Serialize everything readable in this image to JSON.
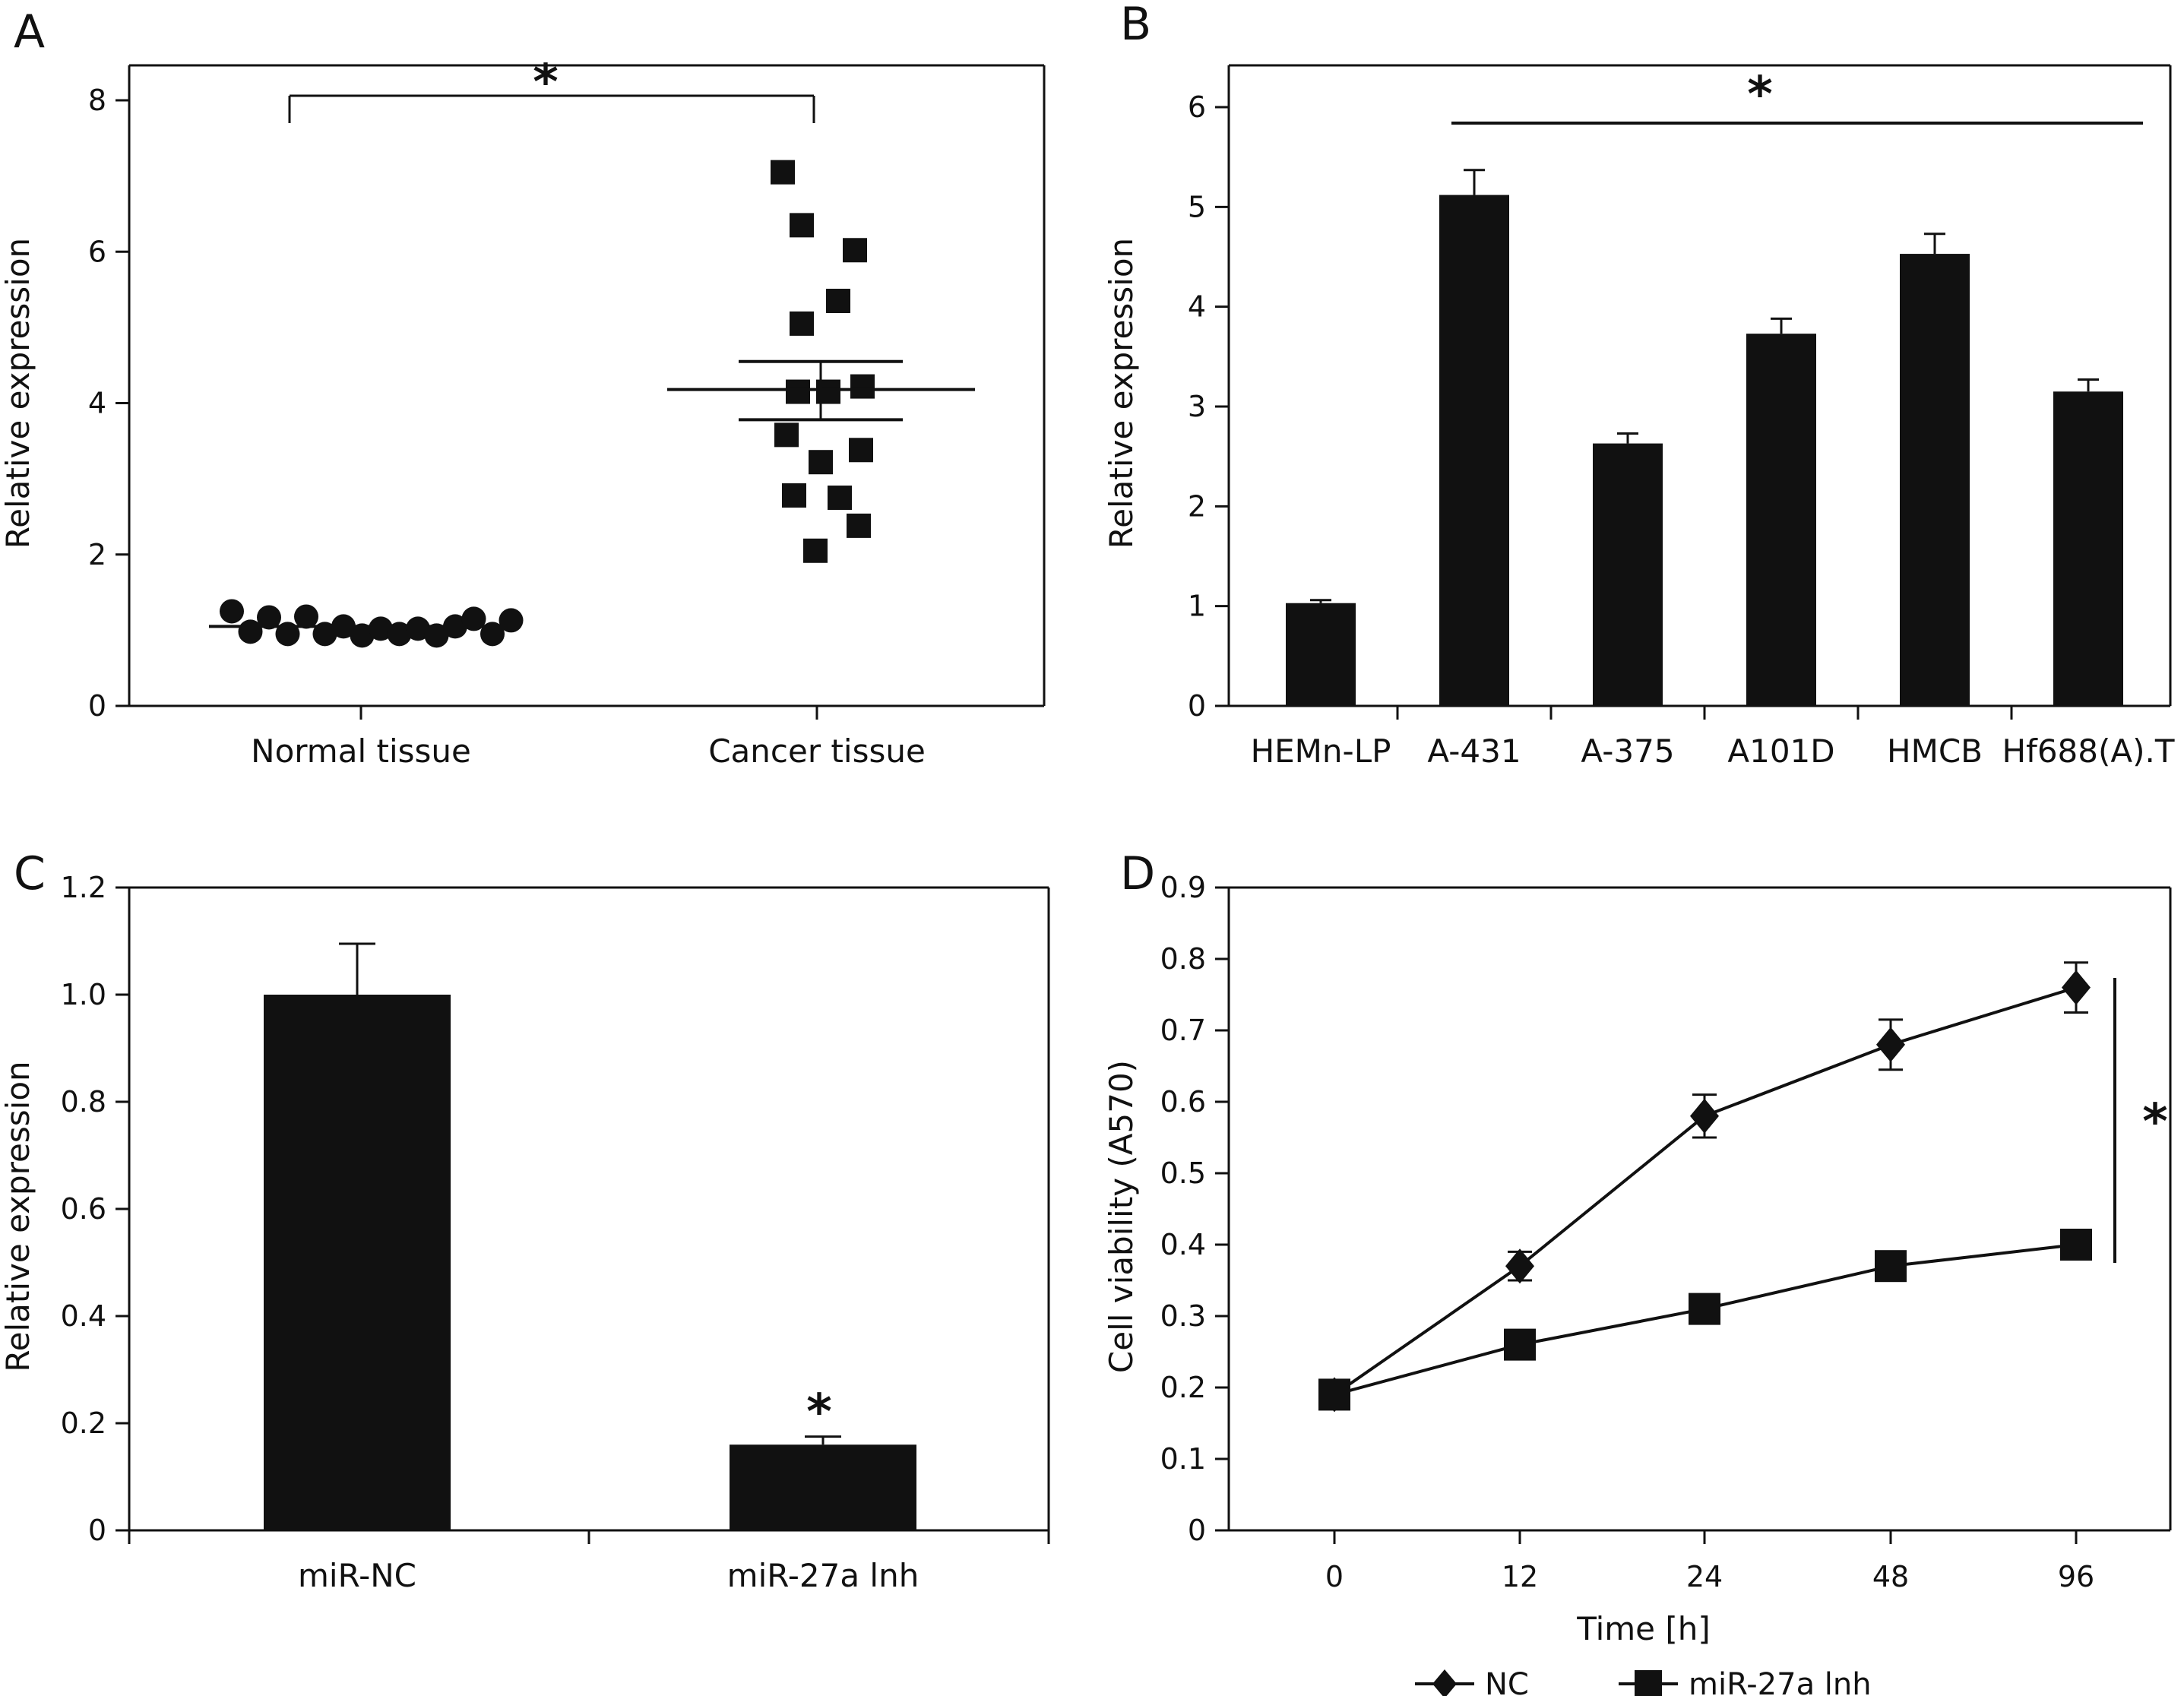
{
  "chart_data": [
    {
      "panel": "A",
      "type": "scatter",
      "categories": [
        "Normal tissue",
        "Cancer tissue"
      ],
      "ylabel": "Relative expression",
      "ylim": [
        0,
        8
      ],
      "yticks": [
        "0",
        "2",
        "4",
        "6",
        "8"
      ],
      "significance": "*",
      "groups": [
        {
          "category": "Normal tissue",
          "marker": "circle",
          "points": [
            1.25,
            0.98,
            1.17,
            0.95,
            1.18,
            0.95,
            1.05,
            0.93,
            1.02,
            0.95,
            1.02,
            0.93,
            1.05,
            1.15,
            0.95,
            1.13
          ],
          "mean": 1.05
        },
        {
          "category": "Cancer tissue",
          "marker": "square",
          "points": [
            7.05,
            6.35,
            6.02,
            5.35,
            5.05,
            4.15,
            4.15,
            4.22,
            3.58,
            3.38,
            3.22,
            2.78,
            2.75,
            2.38,
            2.05
          ],
          "mean": 4.18,
          "sem_low": 3.78,
          "sem_high": 4.55
        }
      ]
    },
    {
      "panel": "B",
      "type": "bar",
      "categories": [
        "HEMn-LP",
        "A-431",
        "A-375",
        "A101D",
        "HMCB",
        "Hf688(A).T"
      ],
      "values": [
        1.03,
        5.12,
        2.63,
        3.73,
        4.53,
        3.15
      ],
      "errors": [
        0.03,
        0.25,
        0.1,
        0.15,
        0.2,
        0.12
      ],
      "ylabel": "Relative expression",
      "ylim": [
        0,
        6
      ],
      "yticks": [
        "0",
        "1",
        "2",
        "3",
        "4",
        "5",
        "6"
      ],
      "significance": "*"
    },
    {
      "panel": "C",
      "type": "bar",
      "categories": [
        "miR-NC",
        "miR-27a lnh"
      ],
      "values": [
        1.0,
        0.16
      ],
      "errors": [
        0.095,
        0.015
      ],
      "ylabel": "Relative expression",
      "ylim": [
        0,
        1.2
      ],
      "yticks": [
        "0",
        "0.2",
        "0.4",
        "0.6",
        "0.8",
        "1.0",
        "1.2"
      ],
      "significance": "*"
    },
    {
      "panel": "D",
      "type": "line",
      "x": [
        "0",
        "12",
        "24",
        "48",
        "96"
      ],
      "xlabel": "Time [h]",
      "ylabel": "Cell viability (A570)",
      "ylim": [
        0,
        0.9
      ],
      "yticks": [
        "0",
        "0.1",
        "0.2",
        "0.3",
        "0.4",
        "0.5",
        "0.6",
        "0.7",
        "0.8",
        "0.9"
      ],
      "significance": "*",
      "series": [
        {
          "name": "NC",
          "marker": "diamond",
          "values": [
            0.19,
            0.37,
            0.58,
            0.68,
            0.76
          ],
          "errors": [
            0,
            0.02,
            0.03,
            0.035,
            0.035
          ]
        },
        {
          "name": "miR-27a lnh",
          "marker": "square",
          "values": [
            0.19,
            0.26,
            0.31,
            0.37,
            0.4
          ],
          "errors": [
            0,
            0,
            0,
            0,
            0
          ]
        }
      ]
    }
  ]
}
